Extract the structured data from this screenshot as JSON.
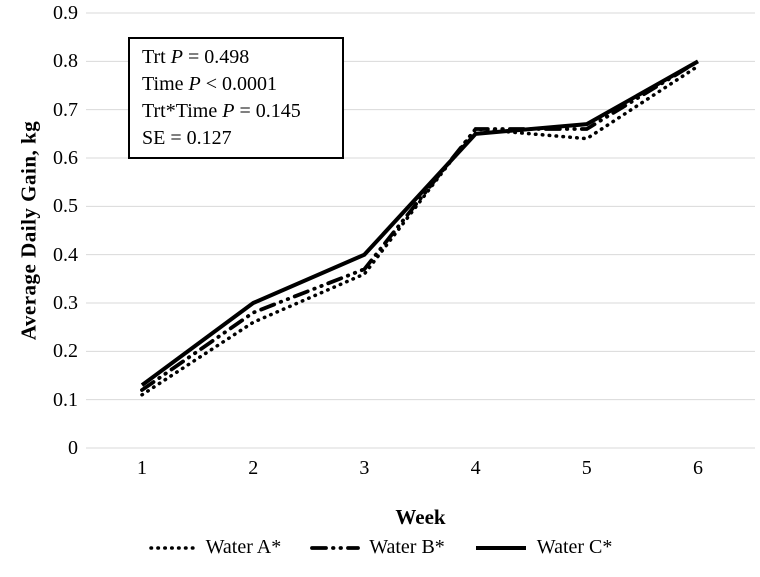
{
  "chart": {
    "stats_box": {
      "lines": [
        {
          "pre": "Trt ",
          "italic": "P",
          "post": " = 0.498"
        },
        {
          "pre": "Time ",
          "italic": "P",
          "post": " < 0.0001"
        },
        {
          "pre": "Trt*Time ",
          "italic": "P",
          "post": " = 0.145"
        },
        {
          "pre": "SE",
          "italic": "",
          "post": " = 0.127"
        }
      ]
    }
  },
  "chart_data": {
    "type": "line",
    "title": "",
    "xlabel": "Week",
    "ylabel": "Average Daily Gain, kg",
    "categories": [
      1,
      2,
      3,
      4,
      5,
      6
    ],
    "series": [
      {
        "name": "Water A*",
        "style": "dotted",
        "values": [
          0.11,
          0.26,
          0.36,
          0.66,
          0.64,
          0.79
        ]
      },
      {
        "name": "Water B*",
        "style": "dash-dot-dot",
        "values": [
          0.12,
          0.28,
          0.37,
          0.66,
          0.66,
          0.8
        ]
      },
      {
        "name": "Water C*",
        "style": "solid",
        "values": [
          0.13,
          0.3,
          0.4,
          0.65,
          0.67,
          0.8
        ]
      }
    ],
    "ylim": [
      0,
      0.9
    ],
    "yticks": [
      0,
      0.1,
      0.2,
      0.3,
      0.4,
      0.5,
      0.6,
      0.7,
      0.8,
      0.9
    ],
    "ytick_labels": [
      "0",
      "0.1",
      "0.2",
      "0.3",
      "0.4",
      "0.5",
      "0.6",
      "0.7",
      "0.8",
      "0.9"
    ],
    "xtick_labels": [
      "1",
      "2",
      "3",
      "4",
      "5",
      "6"
    ],
    "grid": true,
    "legend_position": "bottom",
    "line_color": "#000000",
    "grid_color": "#d9d9d9",
    "background_color": "#ffffff"
  }
}
